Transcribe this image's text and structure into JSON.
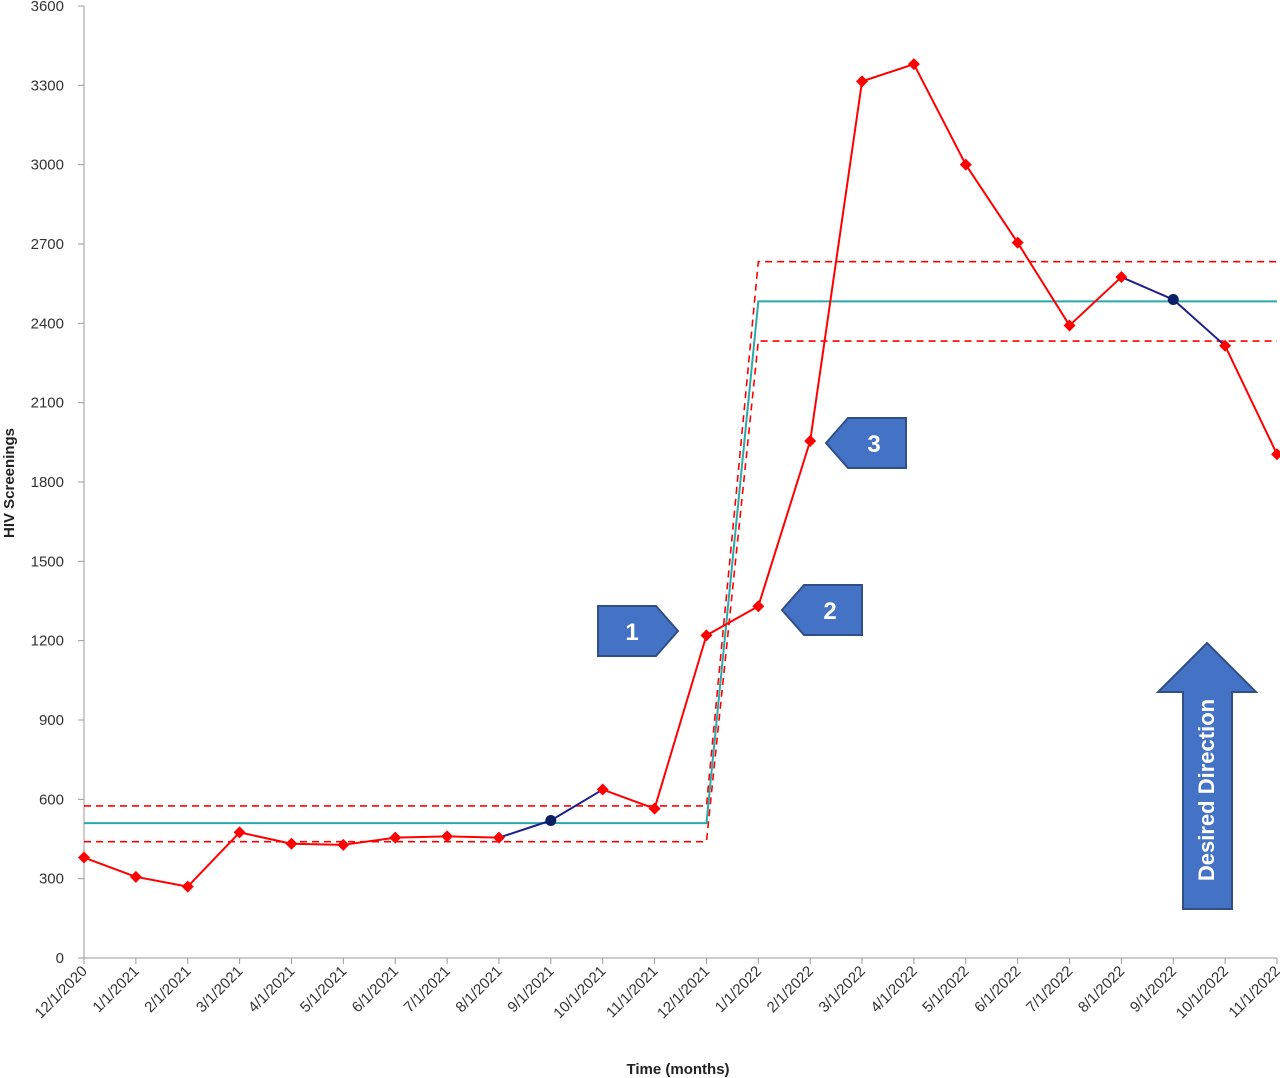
{
  "chart_data": {
    "type": "line",
    "ylabel": "HIV Screenings",
    "xlabel": "Time (months)",
    "ylim": [
      0,
      3600
    ],
    "yticks": [
      0,
      300,
      600,
      900,
      1200,
      1500,
      1800,
      2100,
      2400,
      2700,
      3000,
      3300,
      3600
    ],
    "categories": [
      "12/1/2020",
      "1/1/2021",
      "2/1/2021",
      "3/1/2021",
      "4/1/2021",
      "5/1/2021",
      "6/1/2021",
      "7/1/2021",
      "8/1/2021",
      "9/1/2021",
      "10/1/2021",
      "11/1/2021",
      "12/1/2021",
      "1/1/2022",
      "2/1/2022",
      "3/1/2022",
      "4/1/2022",
      "5/1/2022",
      "6/1/2022",
      "7/1/2022",
      "8/1/2022",
      "9/1/2022",
      "10/1/2022",
      "11/1/2022"
    ],
    "series": [
      {
        "name": "",
        "values": [
          380,
          307,
          270,
          475,
          432,
          428,
          455,
          460,
          455,
          520,
          637,
          565,
          1220,
          1330,
          1955,
          3315,
          3380,
          3000,
          2705,
          2392,
          2575,
          2490,
          2315,
          1905
        ],
        "marker_types": [
          "diamond",
          "diamond",
          "diamond",
          "diamond",
          "diamond",
          "diamond",
          "diamond",
          "diamond",
          "diamond",
          "circle",
          "diamond",
          "diamond",
          "diamond",
          "diamond",
          "diamond",
          "diamond",
          "diamond",
          "diamond",
          "diamond",
          "diamond",
          "diamond",
          "circle",
          "diamond",
          "diamond"
        ],
        "segment_colors": [
          "red",
          "red",
          "red",
          "red",
          "red",
          "red",
          "red",
          "red",
          "navy",
          "navy",
          "red",
          "red",
          "red",
          "red",
          "red",
          "red",
          "red",
          "red",
          "red",
          "red",
          "navy",
          "navy",
          "red"
        ]
      }
    ],
    "center_line": {
      "segments": [
        {
          "from": "12/1/2020",
          "to": "12/1/2021",
          "value": 510
        },
        {
          "from": "1/1/2022",
          "to": "11/1/2022",
          "value": 2483
        }
      ]
    },
    "upper_limit": {
      "segments": [
        {
          "from": "12/1/2020",
          "to": "12/1/2021",
          "value": 575
        },
        {
          "from": "1/1/2022",
          "to": "11/1/2022",
          "value": 2633
        }
      ]
    },
    "lower_limit": {
      "segments": [
        {
          "from": "12/1/2020",
          "to": "12/1/2021",
          "value": 440
        },
        {
          "from": "1/1/2022",
          "to": "11/1/2022",
          "value": 2333
        }
      ]
    },
    "annotations": [
      {
        "label": "1",
        "shape": "pentagon-right",
        "near": "12/1/2021"
      },
      {
        "label": "2",
        "shape": "pentagon-left",
        "near": "1/1/2022"
      },
      {
        "label": "3",
        "shape": "pentagon-left",
        "near": "2/1/2022"
      }
    ],
    "direction_arrow": {
      "text": "Desired Direction",
      "direction": "up"
    },
    "legend": "none",
    "grid": false
  },
  "colors": {
    "data_line": "#ff0000",
    "data_line_special": "#1f1f8f",
    "marker": "#ff0000",
    "marker_special": "#0b1f66",
    "center_line": "#2aa9a9",
    "control_limits": "#ff0000",
    "callout_fill": "#4472c4",
    "callout_stroke": "#2f4f86",
    "axis": "#999999"
  }
}
